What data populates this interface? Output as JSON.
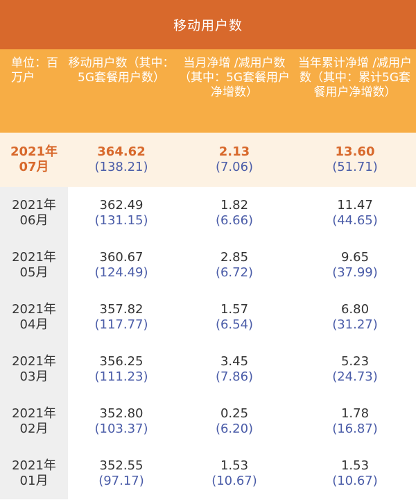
{
  "title": "移动用户数",
  "header": {
    "unit": "单位：百万户",
    "col1": "移动用户数（其中：5G套餐用户数）",
    "col2": "当月净增 /减用户数（其中：5G套餐用户净增数）",
    "col3": "当年累计净增 /减用户数（其中：累计5G套餐用户净增数）"
  },
  "rows": [
    {
      "year": "2021年",
      "month": "07月",
      "c1": "364.62",
      "c1s": "(138.21)",
      "c2": "2.13",
      "c2s": "(7.06)",
      "c3": "13.60",
      "c3s": "(51.71)"
    },
    {
      "year": "2021年",
      "month": "06月",
      "c1": "362.49",
      "c1s": "(131.15)",
      "c2": "1.82",
      "c2s": "(6.66)",
      "c3": "11.47",
      "c3s": "(44.65)"
    },
    {
      "year": "2021年",
      "month": "05月",
      "c1": "360.67",
      "c1s": "(124.49)",
      "c2": "2.85",
      "c2s": "(6.72)",
      "c3": "9.65",
      "c3s": "(37.99)"
    },
    {
      "year": "2021年",
      "month": "04月",
      "c1": "357.82",
      "c1s": "(117.77)",
      "c2": "1.57",
      "c2s": "(6.54)",
      "c3": "6.80",
      "c3s": "(31.27)"
    },
    {
      "year": "2021年",
      "month": "03月",
      "c1": "356.25",
      "c1s": "(111.23)",
      "c2": "3.45",
      "c2s": "(7.86)",
      "c3": "5.23",
      "c3s": "(24.73)"
    },
    {
      "year": "2021年",
      "month": "02月",
      "c1": "352.80",
      "c1s": "(103.37)",
      "c2": "0.25",
      "c2s": "(6.20)",
      "c3": "1.78",
      "c3s": "(16.87)"
    },
    {
      "year": "2021年",
      "month": "01月",
      "c1": "352.55",
      "c1s": "(97.17)",
      "c2": "1.53",
      "c2s": "(10.67)",
      "c3": "1.53",
      "c3s": "(10.67)"
    }
  ]
}
